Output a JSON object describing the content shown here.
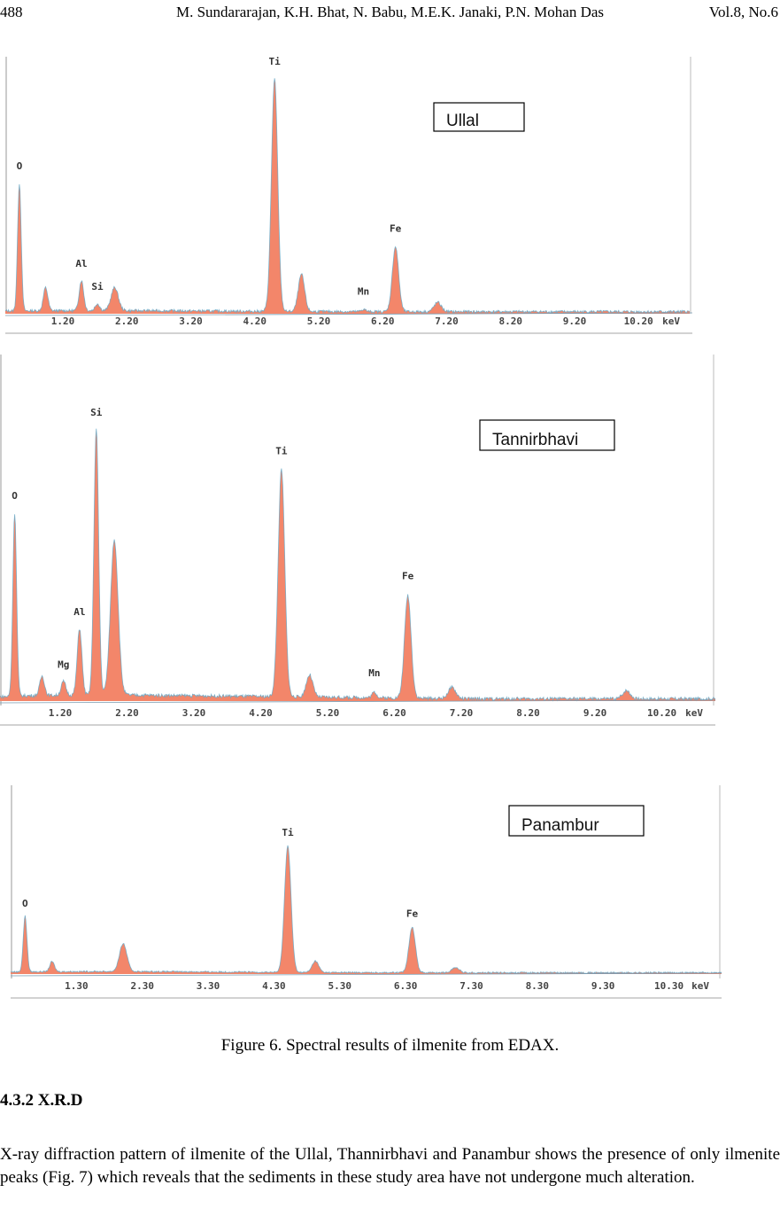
{
  "header": {
    "page_number": "488",
    "authors": "M. Sundararajan, K.H. Bhat, N. Babu, M.E.K. Janaki, P.N. Mohan Das",
    "volume": "Vol.8, No.6"
  },
  "chart_data": [
    {
      "type": "line",
      "sample_label": "Ullal",
      "xlabel": "keV",
      "x_ticks": [
        "1.20",
        "2.20",
        "3.20",
        "4.20",
        "5.20",
        "6.20",
        "7.20",
        "8.20",
        "9.20",
        "10.20"
      ],
      "xlim": [
        0,
        11
      ],
      "ylim": [
        0,
        100
      ],
      "peaks": [
        {
          "label": "O",
          "x": 0.52,
          "y": 55,
          "w": 0.04
        },
        {
          "label": "",
          "x": 0.93,
          "y": 10,
          "w": 0.05
        },
        {
          "label": "Al",
          "x": 1.49,
          "y": 13,
          "w": 0.05
        },
        {
          "label": "Si",
          "x": 1.74,
          "y": 3,
          "w": 0.05
        },
        {
          "label": "",
          "x": 2.01,
          "y": 10,
          "w": 0.08
        },
        {
          "label": "Ti",
          "x": 4.51,
          "y": 100,
          "w": 0.07
        },
        {
          "label": "",
          "x": 4.93,
          "y": 16,
          "w": 0.07
        },
        {
          "label": "Mn",
          "x": 5.9,
          "y": 1,
          "w": 0.05
        },
        {
          "label": "Fe",
          "x": 6.4,
          "y": 28,
          "w": 0.07
        },
        {
          "label": "",
          "x": 7.06,
          "y": 4,
          "w": 0.08
        }
      ]
    },
    {
      "type": "line",
      "sample_label": "Tannirbhavi",
      "xlabel": "keV",
      "x_ticks": [
        "1.20",
        "2.20",
        "3.20",
        "4.20",
        "5.20",
        "6.20",
        "7.20",
        "8.20",
        "9.20",
        "10.20"
      ],
      "xlim": [
        0,
        11
      ],
      "ylim": [
        0,
        100
      ],
      "peaks": [
        {
          "label": "O",
          "x": 0.52,
          "y": 66,
          "w": 0.04
        },
        {
          "label": "",
          "x": 0.93,
          "y": 7,
          "w": 0.05
        },
        {
          "label": "Mg",
          "x": 1.25,
          "y": 5,
          "w": 0.05
        },
        {
          "label": "Al",
          "x": 1.49,
          "y": 24,
          "w": 0.05
        },
        {
          "label": "Si",
          "x": 1.74,
          "y": 96,
          "w": 0.05
        },
        {
          "label": "",
          "x": 2.01,
          "y": 56,
          "w": 0.08
        },
        {
          "label": "Ti",
          "x": 4.51,
          "y": 82,
          "w": 0.07
        },
        {
          "label": "",
          "x": 4.93,
          "y": 8,
          "w": 0.07
        },
        {
          "label": "Mn",
          "x": 5.9,
          "y": 2,
          "w": 0.05
        },
        {
          "label": "Fe",
          "x": 6.4,
          "y": 37,
          "w": 0.07
        },
        {
          "label": "",
          "x": 7.06,
          "y": 4,
          "w": 0.08
        },
        {
          "label": "",
          "x": 9.67,
          "y": 3,
          "w": 0.08
        }
      ]
    },
    {
      "type": "line",
      "sample_label": "Panambur",
      "xlabel": "keV",
      "x_ticks": [
        "1.30",
        "2.30",
        "3.30",
        "4.30",
        "5.30",
        "6.30",
        "7.30",
        "8.30",
        "9.30",
        "10.30"
      ],
      "xlim": [
        0,
        11
      ],
      "ylim": [
        0,
        100
      ],
      "peaks": [
        {
          "label": "O",
          "x": 0.52,
          "y": 44,
          "w": 0.04
        },
        {
          "label": "",
          "x": 0.93,
          "y": 8,
          "w": 0.05
        },
        {
          "label": "",
          "x": 2.01,
          "y": 22,
          "w": 0.08
        },
        {
          "label": "Ti",
          "x": 4.51,
          "y": 100,
          "w": 0.07
        },
        {
          "label": "",
          "x": 4.93,
          "y": 9,
          "w": 0.07
        },
        {
          "label": "Fe",
          "x": 6.4,
          "y": 36,
          "w": 0.07
        },
        {
          "label": "",
          "x": 7.06,
          "y": 4,
          "w": 0.08
        }
      ]
    }
  ],
  "colors": {
    "fill": "#f3866a",
    "outline": "#5fa8c8",
    "axis": "#888888"
  },
  "caption": "Figure 6. Spectral results of ilmenite from EDAX.",
  "section_heading": "4.3.2 X.R.D",
  "paragraph": "X-ray diffraction pattern of ilmenite of the Ullal, Thannirbhavi and Panambur shows the presence of only ilmenite peaks (Fig. 7) which reveals that the sediments in these study area have not undergone much alteration."
}
